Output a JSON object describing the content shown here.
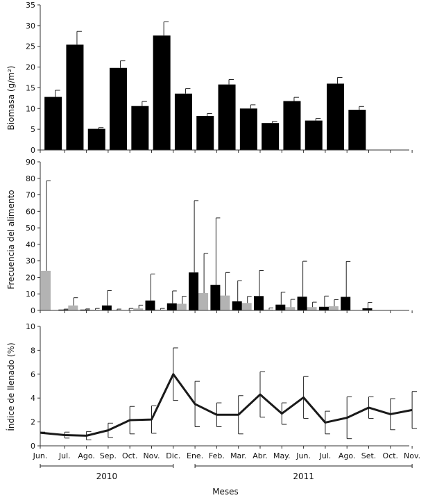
{
  "chart_data": [
    {
      "type": "bar",
      "ylabel": "Biomasa (g/m²)",
      "ylim": [
        0,
        35
      ],
      "yticks": [
        0,
        5,
        10,
        15,
        20,
        25,
        30,
        35
      ],
      "grid": false,
      "color": "#000000",
      "values": [
        12.8,
        25.4,
        5.1,
        19.8,
        10.6,
        27.6,
        13.6,
        8.2,
        15.8,
        10.0,
        6.5,
        11.8,
        7.1,
        16.0,
        9.7
      ],
      "errors": [
        1.6,
        3.2,
        0.3,
        1.7,
        1.1,
        3.3,
        1.2,
        0.6,
        1.2,
        0.9,
        0.4,
        0.9,
        0.5,
        1.5,
        0.8
      ]
    },
    {
      "type": "bar",
      "ylabel": "Frecuencia del alimento",
      "ylim": [
        0,
        90
      ],
      "yticks": [
        0,
        10,
        20,
        30,
        40,
        50,
        60,
        70,
        80,
        90
      ],
      "grid": false,
      "series": [
        {
          "color": "#000000",
          "values": [
            0,
            0.5,
            0.5,
            3,
            0.2,
            6,
            4.3,
            23,
            15.5,
            5.5,
            8.7,
            3.5,
            8.3,
            2.2,
            8.2,
            1.3
          ],
          "errors": [
            0,
            0.3,
            0.4,
            9,
            1,
            16,
            7.5,
            43.5,
            40.5,
            12.5,
            15.5,
            7.5,
            21.5,
            6.5,
            21.5,
            3.5
          ]
        },
        {
          "color": "#b3b3b3",
          "values": [
            24,
            3,
            0.4,
            0.2,
            1.2,
            0.5,
            4,
            10.5,
            9,
            4.5,
            0.5,
            2,
            2,
            2.5
          ],
          "errors": [
            54.5,
            4.7,
            0.8,
            0.6,
            2,
            0.7,
            4.6,
            24,
            14,
            4,
            1,
            4.7,
            3,
            4
          ]
        }
      ]
    },
    {
      "type": "line",
      "ylabel": "Índice de llenado (%)",
      "ylim": [
        0,
        10
      ],
      "yticks": [
        0,
        2,
        4,
        6,
        8,
        10
      ],
      "grid": false,
      "color": "#1a1a1a",
      "categories": [
        "Jun.",
        "Jul.",
        "Ago.",
        "Sep.",
        "Oct.",
        "Nov.",
        "Dic.",
        "Ene.",
        "Feb.",
        "Mar.",
        "Abr.",
        "May.",
        "Jun.",
        "Jul.",
        "Ago.",
        "Set.",
        "Oct.",
        "Nov."
      ],
      "values": [
        1.1,
        0.9,
        0.85,
        1.3,
        2.15,
        2.2,
        6.0,
        3.5,
        2.6,
        2.6,
        4.3,
        2.7,
        4.05,
        1.95,
        2.35,
        3.2,
        2.65,
        3.0
      ],
      "errors": [
        0.05,
        0.25,
        0.35,
        0.6,
        1.15,
        1.15,
        2.2,
        1.9,
        1.0,
        1.6,
        1.9,
        0.9,
        1.75,
        0.95,
        1.75,
        0.9,
        1.3,
        1.55
      ]
    }
  ],
  "xaxis": {
    "title": "Meses",
    "years": [
      {
        "label": "2010",
        "from": 0,
        "to": 6
      },
      {
        "label": "2011",
        "from": 7,
        "to": 17
      }
    ]
  }
}
